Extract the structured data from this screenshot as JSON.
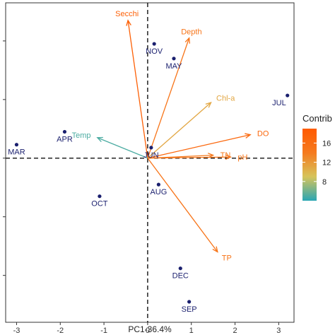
{
  "chart_data": {
    "type": "scatter",
    "subtype": "pca-biplot",
    "xlabel": "PC1-36.4%",
    "x_ticks": [
      -3,
      -2,
      -1,
      0,
      1,
      2,
      3
    ],
    "xlim": [
      -3.25,
      3.35
    ],
    "ylim": [
      -2.8,
      2.65
    ],
    "grid": false,
    "reference_lines": "dashed at x=0 and y=0",
    "points_color": "#1a1f6e",
    "points": [
      {
        "label": "MAR",
        "x": -3.0,
        "y": 0.23
      },
      {
        "label": "APR",
        "x": -1.9,
        "y": 0.45
      },
      {
        "label": "NOV",
        "x": 0.15,
        "y": 1.95
      },
      {
        "label": "MAY",
        "x": 0.6,
        "y": 1.7
      },
      {
        "label": "JUL",
        "x": 3.2,
        "y": 1.07
      },
      {
        "label": "JUN",
        "x": 0.08,
        "y": 0.18
      },
      {
        "label": "AUG",
        "x": 0.25,
        "y": -0.45
      },
      {
        "label": "OCT",
        "x": -1.1,
        "y": -0.65
      },
      {
        "label": "DEC",
        "x": 0.75,
        "y": -1.88
      },
      {
        "label": "SEP",
        "x": 0.95,
        "y": -2.45
      }
    ],
    "loadings": [
      {
        "label": "Secchi",
        "x": -0.45,
        "y": 2.35,
        "contrib": 18
      },
      {
        "label": "Depth",
        "x": 0.95,
        "y": 2.05,
        "contrib": 15
      },
      {
        "label": "Chl-a",
        "x": 1.45,
        "y": 0.95,
        "contrib": 11
      },
      {
        "label": "DO",
        "x": 2.35,
        "y": 0.4,
        "contrib": 17
      },
      {
        "label": "TN",
        "x": 1.5,
        "y": 0.05,
        "contrib": 14
      },
      {
        "label": "pH",
        "x": 1.9,
        "y": 0.02,
        "contrib": 15
      },
      {
        "label": "Temp",
        "x": -1.15,
        "y": 0.35,
        "contrib": 5
      },
      {
        "label": "TP",
        "x": 1.6,
        "y": -1.6,
        "contrib": 15
      }
    ],
    "legend": {
      "title": "Contrib",
      "position": "right",
      "ticks": [
        8,
        12,
        16
      ],
      "tick_labels": [
        "8",
        "12",
        "16"
      ],
      "range": [
        4,
        19
      ],
      "colors": [
        "#2aa6b4",
        "#d6c45a",
        "#f57a1e",
        "#ff5a00"
      ]
    }
  }
}
